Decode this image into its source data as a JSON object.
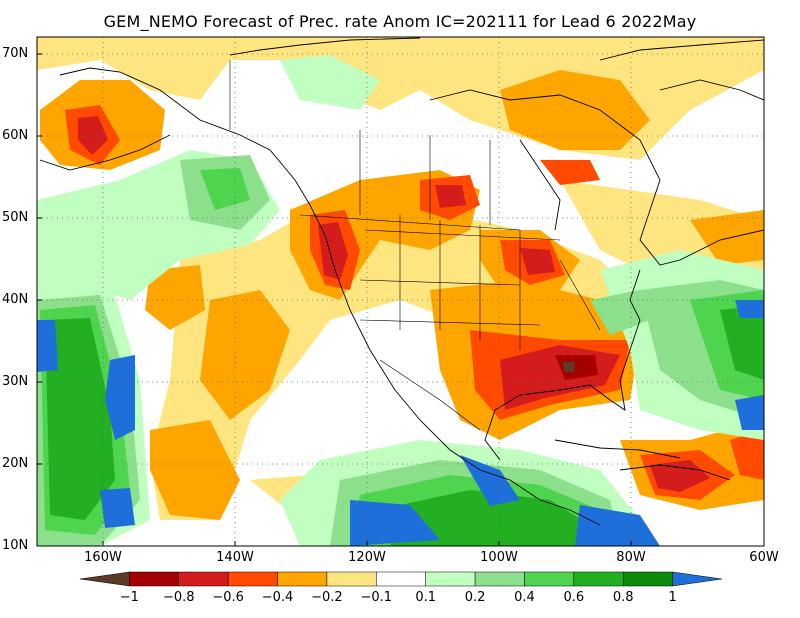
{
  "title": "GEM_NEMO Forecast of Prec. rate Anom IC=202111 for Lead 6 2022May",
  "map": {
    "lat_labels": [
      "70N",
      "60N",
      "50N",
      "40N",
      "30N",
      "20N",
      "10N"
    ],
    "lon_labels": [
      "160W",
      "140W",
      "120W",
      "100W",
      "80W",
      "60W"
    ]
  },
  "colorbar": {
    "labels": [
      "−1",
      "−0.8",
      "−0.6",
      "−0.4",
      "−0.2",
      "−0.1",
      "0.1",
      "0.2",
      "0.4",
      "0.6",
      "0.8",
      "1"
    ],
    "colors": [
      "#5b3a29",
      "#a50000",
      "#d41c1c",
      "#ff4a00",
      "#ffa500",
      "#ffe57f",
      "#ffffff",
      "#c0ffc0",
      "#8ce08c",
      "#4ed44e",
      "#22b022",
      "#0a8c0a",
      "#1e6fd9"
    ]
  }
}
